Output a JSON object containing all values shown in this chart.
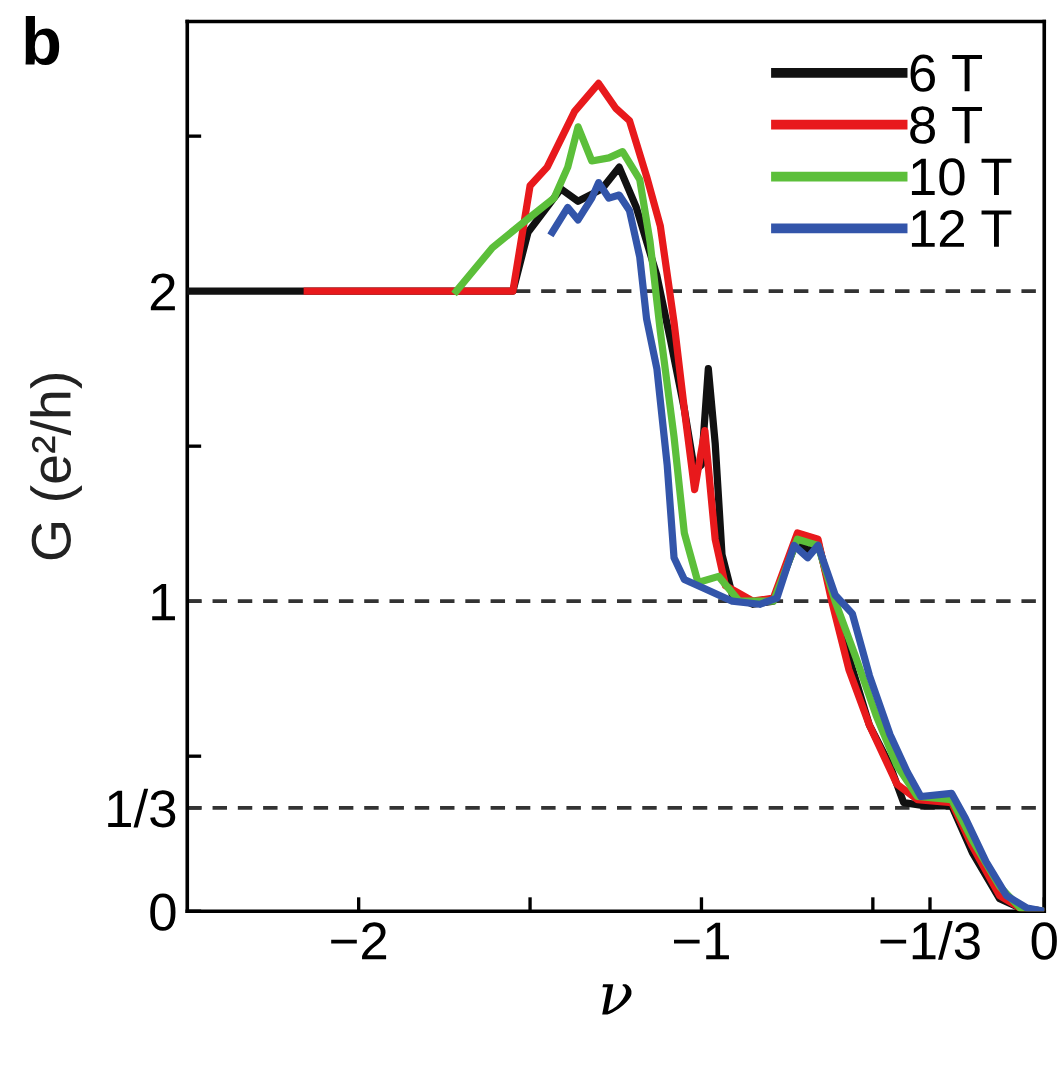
{
  "chart_data": {
    "type": "line",
    "title": "b",
    "xlabel": "ν",
    "ylabel": "G (e²/h)",
    "xlim": [
      -2.5,
      0
    ],
    "ylim": [
      0,
      2.87
    ],
    "xticks": [
      -2,
      {
        "value": -1.5,
        "label": null
      },
      -1,
      {
        "value": -0.5,
        "label": null
      },
      {
        "value": -0.3333,
        "label": "−1/3"
      },
      0
    ],
    "yticks": [
      0,
      {
        "value": 0.3333,
        "label": "1/3"
      },
      {
        "value": 0.5,
        "label": null
      },
      1,
      {
        "value": 1.5,
        "label": null
      },
      2,
      {
        "value": 2.5,
        "label": null
      }
    ],
    "ref_lines": [
      {
        "axis": "y",
        "value": 0.3333,
        "color": "#333333",
        "line_style": "dashed"
      },
      {
        "axis": "y",
        "value": 1,
        "color": "#333333",
        "line_style": "dashed"
      },
      {
        "axis": "y",
        "value": 2,
        "color": "#333333",
        "line_style": "dashed"
      }
    ],
    "legend": "top right",
    "grid": false,
    "marker": "none",
    "line_style": "solid",
    "series": [
      {
        "name": "6 T",
        "color": "#111111",
        "x": [
          -2.5,
          -1.55,
          -1.506,
          -1.41,
          -1.36,
          -1.29,
          -1.24,
          -1.19,
          -1.13,
          -1.09,
          -1.05,
          -1.02,
          -1.0,
          -0.98,
          -0.96,
          -0.94,
          -0.91,
          -0.85,
          -0.79,
          -0.72,
          -0.69,
          -0.66,
          -0.62,
          -0.57,
          -0.51,
          -0.45,
          -0.41,
          -0.35,
          -0.27,
          -0.21,
          -0.13,
          -0.07,
          0
        ],
        "values": [
          2.0,
          2.0,
          2.19,
          2.33,
          2.29,
          2.33,
          2.4,
          2.27,
          2.05,
          1.84,
          1.62,
          1.42,
          1.44,
          1.75,
          1.51,
          1.15,
          1.02,
          0.99,
          1.0,
          1.2,
          1.16,
          1.19,
          1.02,
          0.82,
          0.6,
          0.47,
          0.35,
          0.34,
          0.34,
          0.19,
          0.04,
          0.01,
          0.0
        ]
      },
      {
        "name": "8 T",
        "color": "#e8191c",
        "x": [
          -2.15,
          -1.55,
          -1.5,
          -1.45,
          -1.37,
          -1.3,
          -1.25,
          -1.21,
          -1.16,
          -1.12,
          -1.08,
          -1.05,
          -1.02,
          -0.99,
          -0.96,
          -0.93,
          -0.85,
          -0.79,
          -0.72,
          -0.66,
          -0.62,
          -0.57,
          -0.51,
          -0.43,
          -0.37,
          -0.27,
          -0.21,
          -0.13,
          -0.07,
          0
        ],
        "values": [
          2.0,
          2.0,
          2.34,
          2.4,
          2.58,
          2.67,
          2.59,
          2.55,
          2.37,
          2.21,
          1.9,
          1.62,
          1.36,
          1.55,
          1.2,
          1.05,
          1.0,
          1.01,
          1.22,
          1.2,
          1.0,
          0.78,
          0.6,
          0.41,
          0.36,
          0.35,
          0.21,
          0.05,
          0.01,
          0.0
        ]
      },
      {
        "name": "10 T",
        "color": "#5cbf3a",
        "x": [
          -1.715,
          -1.61,
          -1.51,
          -1.43,
          -1.39,
          -1.36,
          -1.32,
          -1.27,
          -1.23,
          -1.18,
          -1.15,
          -1.12,
          -1.08,
          -1.05,
          -1.01,
          -0.95,
          -0.89,
          -0.79,
          -0.72,
          -0.66,
          -0.61,
          -0.55,
          -0.49,
          -0.43,
          -0.37,
          -0.27,
          -0.21,
          -0.13,
          -0.07,
          0
        ],
        "values": [
          2.0,
          2.14,
          2.23,
          2.3,
          2.4,
          2.53,
          2.42,
          2.43,
          2.45,
          2.36,
          2.16,
          1.87,
          1.53,
          1.22,
          1.06,
          1.08,
          1.0,
          1.0,
          1.2,
          1.18,
          1.0,
          0.82,
          0.63,
          0.47,
          0.37,
          0.36,
          0.23,
          0.08,
          0.01,
          0.0
        ]
      },
      {
        "name": "12 T",
        "color": "#3355aa",
        "x": [
          -1.435,
          -1.39,
          -1.36,
          -1.32,
          -1.3,
          -1.27,
          -1.24,
          -1.21,
          -1.18,
          -1.16,
          -1.13,
          -1.1,
          -1.08,
          -1.05,
          -0.99,
          -0.91,
          -0.83,
          -0.78,
          -0.73,
          -0.69,
          -0.66,
          -0.61,
          -0.56,
          -0.51,
          -0.45,
          -0.4,
          -0.36,
          -0.27,
          -0.23,
          -0.17,
          -0.11,
          -0.05,
          0
        ],
        "values": [
          2.19,
          2.27,
          2.23,
          2.3,
          2.35,
          2.3,
          2.31,
          2.26,
          2.11,
          1.91,
          1.75,
          1.44,
          1.14,
          1.07,
          1.04,
          1.0,
          0.99,
          1.01,
          1.18,
          1.14,
          1.18,
          1.02,
          0.96,
          0.76,
          0.57,
          0.45,
          0.37,
          0.38,
          0.3,
          0.16,
          0.05,
          0.01,
          0.0
        ]
      }
    ]
  }
}
